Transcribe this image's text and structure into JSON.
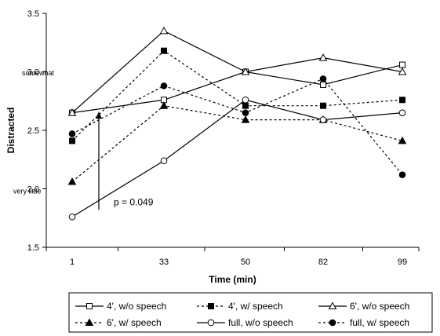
{
  "chart_data": {
    "type": "line",
    "xlabel": "Time (min)",
    "ylabel": "Distracted",
    "categories": [
      "1",
      "33",
      "50",
      "82",
      "99"
    ],
    "ylim": [
      1.5,
      3.5
    ],
    "yticks": [
      "1.5",
      "2.0",
      "2.5",
      "3.0",
      "3.5"
    ],
    "grid": false,
    "legend_position": "bottom",
    "annotations": {
      "somewhat": "somewhat",
      "very_little": "very little",
      "pvalue": "p = 0.049"
    },
    "series": [
      {
        "name": "4', w/o speech",
        "values": [
          2.65,
          2.76,
          3.0,
          2.89,
          3.06
        ],
        "dash": "solid",
        "marker": "square-open"
      },
      {
        "name": "4', w/ speech",
        "values": [
          2.41,
          3.18,
          2.71,
          2.71,
          2.76
        ],
        "dash": "dotted",
        "marker": "square-filled"
      },
      {
        "name": "6', w/o speech",
        "values": [
          2.65,
          3.35,
          3.0,
          3.12,
          3.0
        ],
        "dash": "solid",
        "marker": "triangle-open"
      },
      {
        "name": "6', w/ speech",
        "values": [
          2.06,
          2.71,
          2.59,
          2.59,
          2.41
        ],
        "dash": "dotted",
        "marker": "triangle-filled"
      },
      {
        "name": "full, w/o speech",
        "values": [
          1.76,
          2.24,
          2.76,
          2.59,
          2.65
        ],
        "dash": "solid",
        "marker": "circle-open"
      },
      {
        "name": "full, w/ speech",
        "values": [
          2.47,
          2.88,
          2.65,
          2.94,
          2.12
        ],
        "dash": "dotted",
        "marker": "circle-filled"
      }
    ]
  }
}
